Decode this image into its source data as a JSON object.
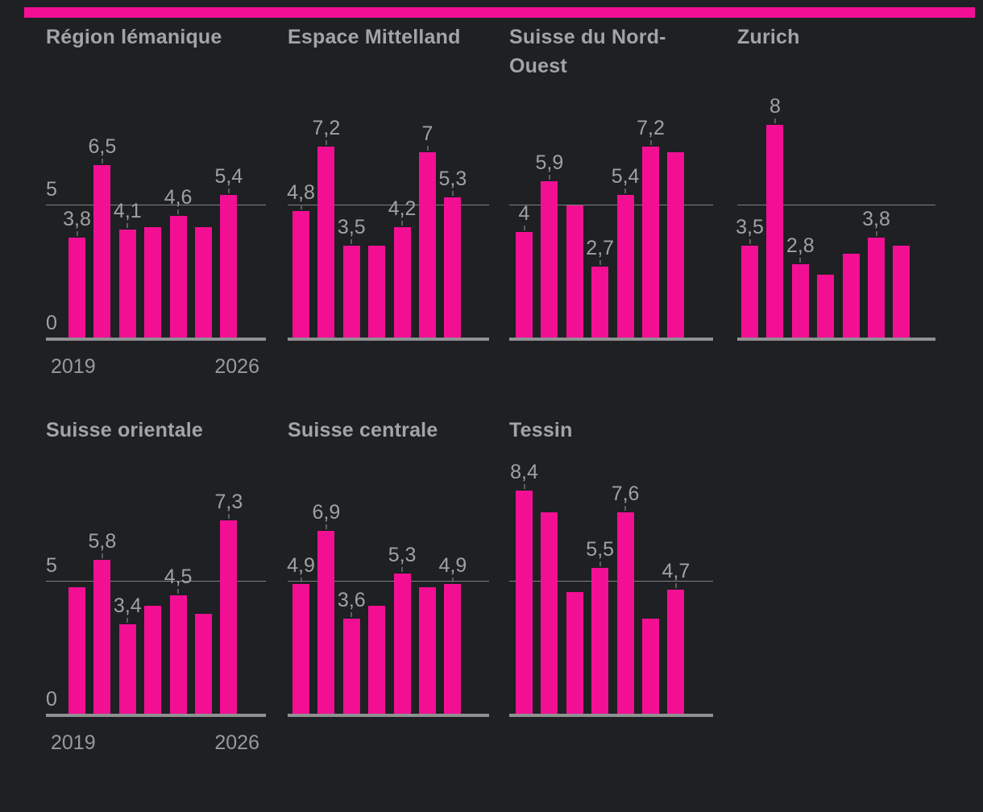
{
  "page": {
    "background_color": "#1e2023",
    "accent_color": "#f30f93",
    "bar_color": "#f30f93",
    "text_color": "#a2a4a7",
    "gridline_color": "#7e8083",
    "axis_line_color": "#8f9092",
    "leader_line_color": "#5c5d60"
  },
  "axis_labels": {
    "y_gridline": "5",
    "y_zero": "0",
    "x_first": "2019",
    "x_last": "2026"
  },
  "chart_data": [
    {
      "type": "bar",
      "title": "Région lémanique",
      "x_ticks": [
        "2019",
        "2026"
      ],
      "ylim": [
        0,
        8.5
      ],
      "gridline_value": 5,
      "values": [
        3.8,
        6.5,
        4.1,
        4.2,
        4.6,
        4.2,
        5.4
      ],
      "bar_labels": [
        "3,8",
        "6,5",
        "4,1",
        "",
        "4,6",
        "",
        "5,4"
      ],
      "show_axis_labels": true
    },
    {
      "type": "bar",
      "title": "Espace Mittelland",
      "x_ticks": [
        "2019",
        "2026"
      ],
      "ylim": [
        0,
        8.5
      ],
      "gridline_value": 5,
      "values": [
        4.8,
        7.2,
        3.5,
        3.5,
        4.2,
        7,
        5.3
      ],
      "bar_labels": [
        "4,8",
        "7,2",
        "3,5",
        "",
        "4,2",
        "7",
        "5,3"
      ],
      "show_axis_labels": false
    },
    {
      "type": "bar",
      "title": "Suisse du Nord-Ouest",
      "x_ticks": [
        "2019",
        "2026"
      ],
      "ylim": [
        0,
        8.5
      ],
      "gridline_value": 5,
      "values": [
        4,
        5.9,
        5,
        2.7,
        5.4,
        7.2,
        7
      ],
      "bar_labels": [
        "4",
        "5,9",
        "",
        "2,7",
        "5,4",
        "7,2",
        ""
      ],
      "show_axis_labels": false
    },
    {
      "type": "bar",
      "title": "Zurich",
      "x_ticks": [
        "2019",
        "2026"
      ],
      "ylim": [
        0,
        8.5
      ],
      "gridline_value": 5,
      "values": [
        3.5,
        8,
        2.8,
        2.4,
        3.2,
        3.8,
        3.5
      ],
      "bar_labels": [
        "3,5",
        "8",
        "2,8",
        "",
        "",
        "3,8",
        ""
      ],
      "show_axis_labels": false
    },
    {
      "type": "bar",
      "title": "Suisse orientale",
      "x_ticks": [
        "2019",
        "2026"
      ],
      "ylim": [
        0,
        8.5
      ],
      "gridline_value": 5,
      "values": [
        4.8,
        5.8,
        3.4,
        4.1,
        4.5,
        3.8,
        7.3
      ],
      "bar_labels": [
        "",
        "5,8",
        "3,4",
        "",
        "4,5",
        "",
        "7,3"
      ],
      "show_axis_labels": true
    },
    {
      "type": "bar",
      "title": "Suisse centrale",
      "x_ticks": [
        "2019",
        "2026"
      ],
      "ylim": [
        0,
        8.5
      ],
      "gridline_value": 5,
      "values": [
        4.9,
        6.9,
        3.6,
        4.1,
        5.3,
        4.8,
        4.9
      ],
      "bar_labels": [
        "4,9",
        "6,9",
        "3,6",
        "",
        "5,3",
        "",
        "4,9"
      ],
      "show_axis_labels": false
    },
    {
      "type": "bar",
      "title": "Tessin",
      "x_ticks": [
        "2019",
        "2026"
      ],
      "ylim": [
        0,
        8.5
      ],
      "gridline_value": 5,
      "values": [
        8.4,
        7.6,
        4.6,
        5.5,
        7.6,
        3.6,
        4.7
      ],
      "bar_labels": [
        "8,4",
        "",
        "",
        "5,5",
        "7,6",
        "",
        "4,7"
      ],
      "show_axis_labels": false
    }
  ]
}
